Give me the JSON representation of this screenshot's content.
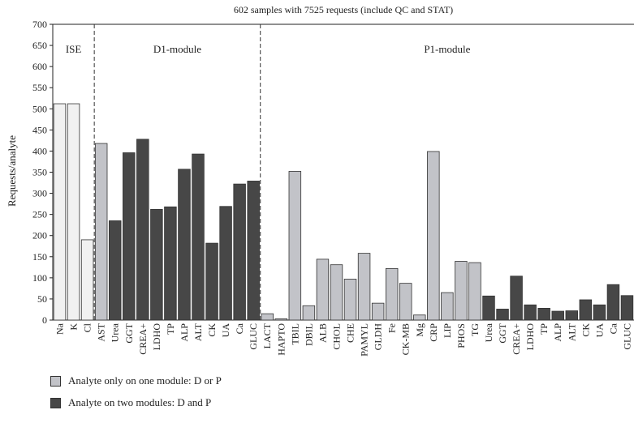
{
  "chart_data": {
    "type": "bar",
    "title": "602 samples with 7525 requests (include QC and STAT)",
    "xlabel": "",
    "ylabel": "Requests/analyte",
    "ylim": [
      0,
      700
    ],
    "yticks": [
      0,
      50,
      100,
      150,
      200,
      250,
      300,
      350,
      400,
      450,
      500,
      550,
      600,
      650,
      700
    ],
    "grid": false,
    "sections": [
      "ISE",
      "D1-module",
      "P1-module"
    ],
    "categories": [
      "Na",
      "K",
      "Cl",
      "AST",
      "Urea",
      "GGT",
      "CREA+",
      "LDHO",
      "TP",
      "ALP",
      "ALT",
      "CK",
      "UA",
      "Ca",
      "GLUC",
      "LACT",
      "HAPTO",
      "TBIL",
      "DBIL",
      "ALB",
      "CHOL",
      "CHE",
      "PAMYL",
      "GLDH",
      "Fe",
      "CK-MB",
      "Mg",
      "CRP",
      "LIP",
      "PHOS",
      "TG",
      "Urea",
      "GGT",
      "CREA+",
      "LDHO",
      "TP",
      "ALP",
      "ALT",
      "CK",
      "UA",
      "Ca",
      "GLUC"
    ],
    "section_of_bar": [
      "ISE",
      "ISE",
      "ISE",
      "D1-module",
      "D1-module",
      "D1-module",
      "D1-module",
      "D1-module",
      "D1-module",
      "D1-module",
      "D1-module",
      "D1-module",
      "D1-module",
      "D1-module",
      "D1-module",
      "P1-module",
      "P1-module",
      "P1-module",
      "P1-module",
      "P1-module",
      "P1-module",
      "P1-module",
      "P1-module",
      "P1-module",
      "P1-module",
      "P1-module",
      "P1-module",
      "P1-module",
      "P1-module",
      "P1-module",
      "P1-module",
      "P1-module",
      "P1-module",
      "P1-module",
      "P1-module",
      "P1-module",
      "P1-module",
      "P1-module",
      "P1-module",
      "P1-module",
      "P1-module",
      "P1-module"
    ],
    "values": [
      512,
      512,
      190,
      418,
      235,
      396,
      428,
      262,
      268,
      357,
      393,
      182,
      269,
      322,
      329,
      15,
      3,
      352,
      34,
      144,
      131,
      97,
      158,
      40,
      122,
      87,
      12,
      399,
      65,
      139,
      136,
      57,
      26,
      104,
      36,
      28,
      21,
      22,
      48,
      36,
      84,
      58
    ],
    "bar_group": [
      "ise",
      "ise",
      "ise",
      "one",
      "two",
      "two",
      "two",
      "two",
      "two",
      "two",
      "two",
      "two",
      "two",
      "two",
      "two",
      "one",
      "one",
      "one",
      "one",
      "one",
      "one",
      "one",
      "one",
      "one",
      "one",
      "one",
      "one",
      "one",
      "one",
      "one",
      "one",
      "two",
      "two",
      "two",
      "two",
      "two",
      "two",
      "two",
      "two",
      "two",
      "two",
      "two"
    ],
    "colors": {
      "ise": "#f1f1f1",
      "one": "#c2c3c8",
      "two": "#474747"
    },
    "legend": [
      {
        "key": "one",
        "label": "Analyte only on one module: D or P"
      },
      {
        "key": "two",
        "label": "Analyte on two modules: D and P"
      }
    ]
  }
}
